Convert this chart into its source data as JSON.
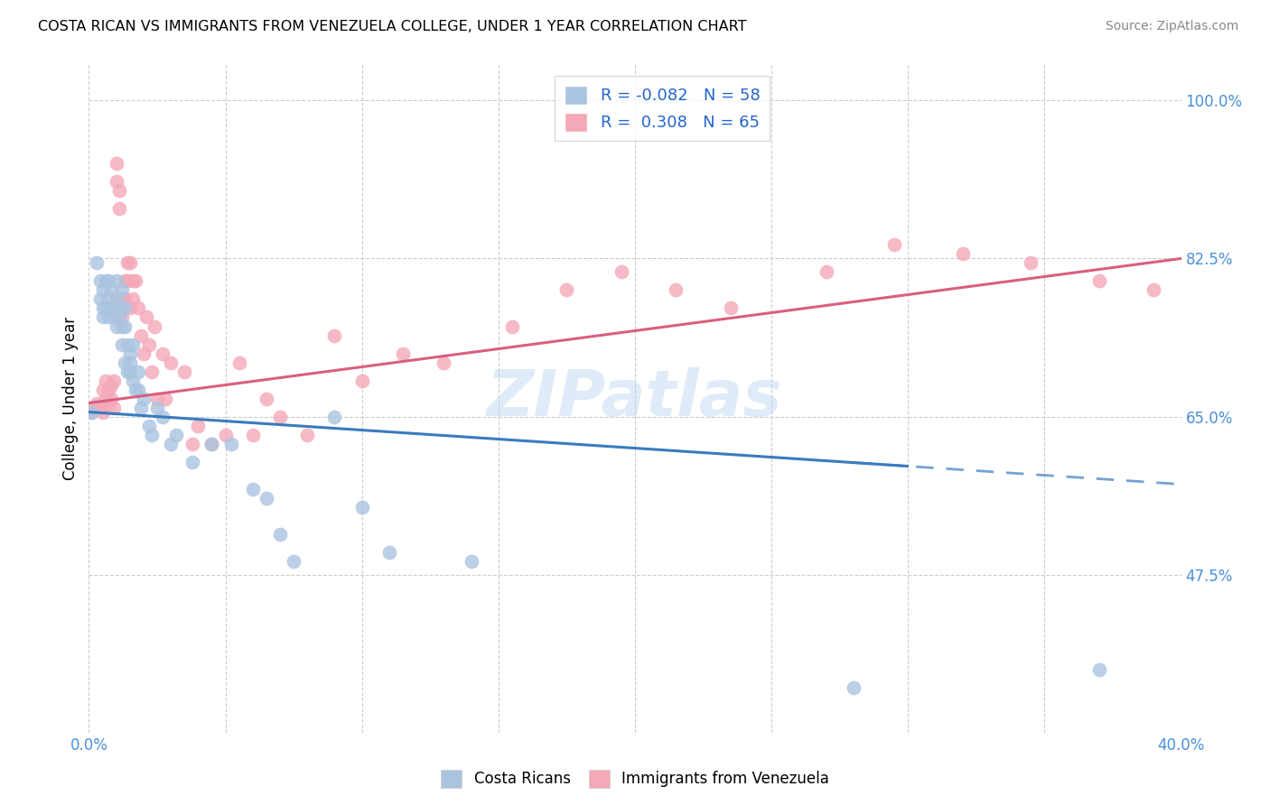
{
  "title": "COSTA RICAN VS IMMIGRANTS FROM VENEZUELA COLLEGE, UNDER 1 YEAR CORRELATION CHART",
  "source": "Source: ZipAtlas.com",
  "ylabel": "College, Under 1 year",
  "xlim": [
    0.0,
    0.4
  ],
  "ylim": [
    0.3,
    1.04
  ],
  "xtick_positions": [
    0.0,
    0.05,
    0.1,
    0.15,
    0.2,
    0.25,
    0.3,
    0.35,
    0.4
  ],
  "xticklabels": [
    "0.0%",
    "",
    "",
    "",
    "",
    "",
    "",
    "",
    "40.0%"
  ],
  "yticks_right": [
    1.0,
    0.825,
    0.65,
    0.475
  ],
  "yticks_right_labels": [
    "100.0%",
    "82.5%",
    "65.0%",
    "47.5%"
  ],
  "blue_color": "#aac4e0",
  "pink_color": "#f4a8b8",
  "blue_line_color": "#3a7bbf",
  "pink_line_color": "#d95f7f",
  "label_blue": "Costa Ricans",
  "label_pink": "Immigrants from Venezuela",
  "watermark": "ZIPatlas",
  "blue_scatter_x": [
    0.001,
    0.003,
    0.004,
    0.004,
    0.005,
    0.005,
    0.005,
    0.006,
    0.006,
    0.007,
    0.007,
    0.007,
    0.008,
    0.008,
    0.009,
    0.009,
    0.01,
    0.01,
    0.01,
    0.011,
    0.011,
    0.012,
    0.012,
    0.012,
    0.013,
    0.013,
    0.013,
    0.014,
    0.014,
    0.015,
    0.015,
    0.015,
    0.016,
    0.016,
    0.017,
    0.018,
    0.018,
    0.019,
    0.02,
    0.022,
    0.023,
    0.025,
    0.027,
    0.03,
    0.032,
    0.038,
    0.045,
    0.052,
    0.06,
    0.065,
    0.07,
    0.075,
    0.09,
    0.1,
    0.11,
    0.14,
    0.28,
    0.37
  ],
  "blue_scatter_y": [
    0.655,
    0.82,
    0.8,
    0.78,
    0.79,
    0.77,
    0.76,
    0.8,
    0.77,
    0.8,
    0.78,
    0.76,
    0.77,
    0.79,
    0.77,
    0.76,
    0.75,
    0.78,
    0.8,
    0.77,
    0.76,
    0.75,
    0.79,
    0.73,
    0.75,
    0.77,
    0.71,
    0.73,
    0.7,
    0.72,
    0.71,
    0.7,
    0.73,
    0.69,
    0.68,
    0.7,
    0.68,
    0.66,
    0.67,
    0.64,
    0.63,
    0.66,
    0.65,
    0.62,
    0.63,
    0.6,
    0.62,
    0.62,
    0.57,
    0.56,
    0.52,
    0.49,
    0.65,
    0.55,
    0.5,
    0.49,
    0.35,
    0.37
  ],
  "pink_scatter_x": [
    0.001,
    0.002,
    0.003,
    0.004,
    0.005,
    0.005,
    0.006,
    0.006,
    0.007,
    0.007,
    0.008,
    0.008,
    0.009,
    0.009,
    0.01,
    0.01,
    0.011,
    0.011,
    0.012,
    0.012,
    0.013,
    0.013,
    0.014,
    0.014,
    0.015,
    0.015,
    0.016,
    0.016,
    0.017,
    0.018,
    0.019,
    0.02,
    0.021,
    0.022,
    0.023,
    0.024,
    0.025,
    0.027,
    0.028,
    0.03,
    0.035,
    0.038,
    0.04,
    0.045,
    0.05,
    0.055,
    0.06,
    0.065,
    0.07,
    0.08,
    0.09,
    0.1,
    0.115,
    0.13,
    0.155,
    0.175,
    0.195,
    0.215,
    0.235,
    0.27,
    0.295,
    0.32,
    0.345,
    0.37,
    0.39
  ],
  "pink_scatter_y": [
    0.655,
    0.66,
    0.665,
    0.66,
    0.655,
    0.68,
    0.67,
    0.69,
    0.665,
    0.68,
    0.67,
    0.685,
    0.66,
    0.69,
    0.93,
    0.91,
    0.9,
    0.88,
    0.78,
    0.76,
    0.8,
    0.78,
    0.82,
    0.8,
    0.77,
    0.82,
    0.78,
    0.8,
    0.8,
    0.77,
    0.74,
    0.72,
    0.76,
    0.73,
    0.7,
    0.75,
    0.67,
    0.72,
    0.67,
    0.71,
    0.7,
    0.62,
    0.64,
    0.62,
    0.63,
    0.71,
    0.63,
    0.67,
    0.65,
    0.63,
    0.74,
    0.69,
    0.72,
    0.71,
    0.75,
    0.79,
    0.81,
    0.79,
    0.77,
    0.81,
    0.84,
    0.83,
    0.82,
    0.8,
    0.79
  ]
}
